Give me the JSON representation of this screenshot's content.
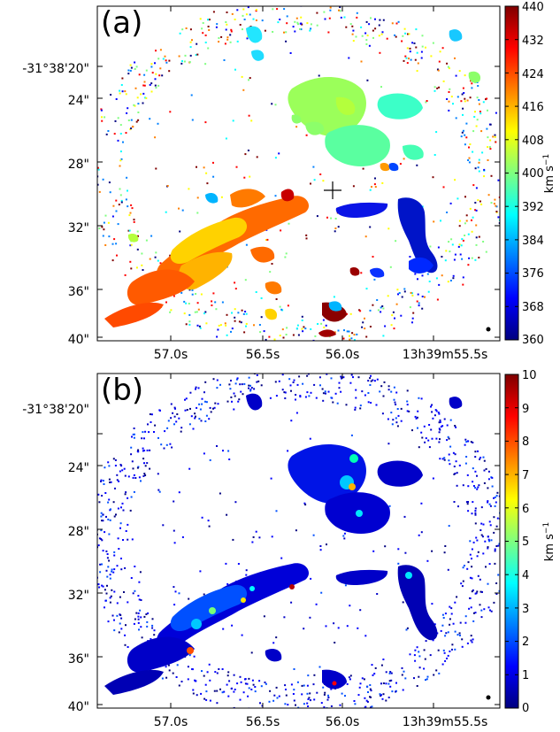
{
  "chart_data": [
    {
      "type": "heatmap",
      "panel_label": "(a)",
      "ra_ticks": [
        "57.0s",
        "56.5s",
        "56.0s",
        "13h39m55.5s"
      ],
      "dec_ticks": [
        "-31°38'20\"",
        "24\"",
        "28\"",
        "32\"",
        "36\"",
        "40\""
      ],
      "colorbar": {
        "label": "km s$^{-1}$",
        "label_main": "km s",
        "label_exp": "−1",
        "ticks": [
          "440",
          "432",
          "424",
          "416",
          "408",
          "400",
          "392",
          "384",
          "376",
          "368",
          "360"
        ],
        "range": [
          360,
          440
        ]
      },
      "colormap": "jet",
      "marker": "cross",
      "beam": "filled-circle",
      "structures": [
        {
          "name": "southeast-arm",
          "value": 425
        },
        {
          "name": "center-knots",
          "value": 436
        },
        {
          "name": "northwest-blob",
          "value": 398
        },
        {
          "name": "northwest-east",
          "value": 393
        },
        {
          "name": "western-arm",
          "value": 372
        },
        {
          "name": "north-west-tip",
          "value": 385
        }
      ]
    },
    {
      "type": "heatmap",
      "panel_label": "(b)",
      "ra_ticks": [
        "57.0s",
        "56.5s",
        "56.0s",
        "13h39m55.5s"
      ],
      "dec_ticks": [
        "-31°38'20\"",
        "24\"",
        "28\"",
        "32\"",
        "36\"",
        "40\""
      ],
      "colorbar": {
        "label": "km s$^{-1}$",
        "label_main": "km s",
        "label_exp": "−1",
        "ticks": [
          "10",
          "9",
          "8",
          "7",
          "6",
          "5",
          "4",
          "3",
          "2",
          "1",
          "0"
        ],
        "range": [
          0,
          10
        ]
      },
      "colormap": "jet",
      "beam": "filled-circle",
      "peaks": [
        {
          "location": "northwest-blob-core",
          "value": 7.5
        },
        {
          "location": "southeast-arm-knot",
          "value": 9.0
        },
        {
          "location": "arm-knot-2",
          "value": 6.0
        }
      ]
    }
  ]
}
